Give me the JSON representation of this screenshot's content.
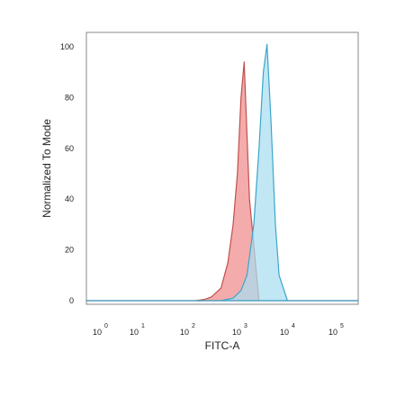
{
  "chart_data": {
    "type": "area",
    "title": "",
    "xlabel": "FITC-A",
    "ylabel": "Normalized To Mode",
    "x_scale": "log",
    "xlim": [
      1,
      100000
    ],
    "ylim": [
      0,
      105
    ],
    "x_ticks": [
      {
        "base": "10",
        "exp": "0",
        "value": 1
      },
      {
        "base": "10",
        "exp": "1",
        "value": 10
      },
      {
        "base": "10",
        "exp": "2",
        "value": 100
      },
      {
        "base": "10",
        "exp": "3",
        "value": 1000
      },
      {
        "base": "10",
        "exp": "4",
        "value": 10000
      },
      {
        "base": "10",
        "exp": "5",
        "value": 100000
      }
    ],
    "y_ticks": [
      "0",
      "20",
      "40",
      "60",
      "80",
      "100"
    ],
    "grid": false,
    "legend": "none",
    "series": [
      {
        "color": "#f08a8a",
        "stroke": "#c0504d",
        "x": [
          1,
          100,
          150,
          200,
          300,
          400,
          500,
          600,
          700,
          800,
          1000,
          1500,
          100000
        ],
        "y": [
          0,
          0,
          0.5,
          1.5,
          5,
          15,
          30,
          50,
          80,
          94,
          40,
          0,
          0
        ]
      },
      {
        "color": "#a9def0",
        "stroke": "#3aa6cc",
        "x": [
          1,
          300,
          500,
          700,
          900,
          1200,
          1500,
          1800,
          2100,
          2500,
          3000,
          3500,
          5000,
          100000
        ],
        "y": [
          0,
          0,
          1,
          4,
          10,
          30,
          60,
          90,
          101,
          70,
          30,
          10,
          0,
          0
        ]
      }
    ]
  }
}
